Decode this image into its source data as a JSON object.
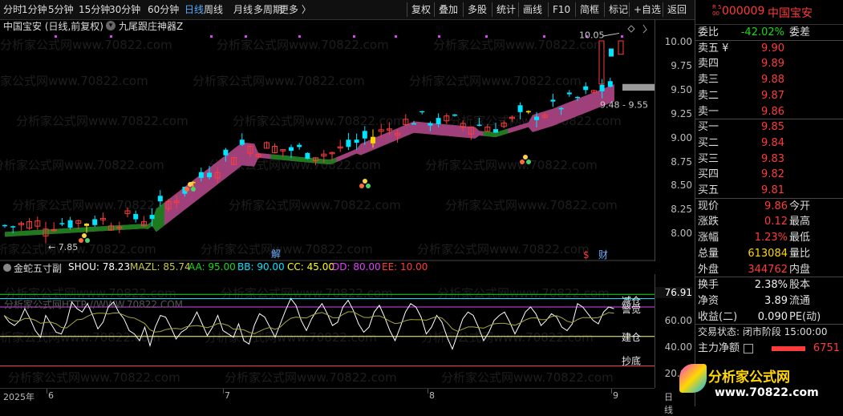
{
  "toolbar": {
    "periods": [
      "分时",
      "1分钟",
      "5分钟",
      "15分钟",
      "30分钟",
      "60分钟",
      "日线",
      "周线",
      "月线",
      "多周期",
      "更多 〉"
    ],
    "active_period": "日线",
    "tools": [
      "复权",
      "叠加",
      "多股",
      "统计",
      "画线",
      "F10",
      "简框",
      "标记",
      "+自选",
      "返回"
    ]
  },
  "chart": {
    "stock_title": "中国宝安 (日线,前复权)",
    "indicator_title": "九尾跟庄神器Z",
    "price_high_label": "10.05",
    "price_low_label": "7.85",
    "range_label": "9.48 - 9.55",
    "marker_jie": "解",
    "marker_dollar": "$",
    "marker_cai": "财",
    "y_labels": [
      "10.00",
      "9.75",
      "9.50",
      "9.25",
      "9.00",
      "8.75",
      "8.50",
      "8.25",
      "8.00"
    ],
    "last_price_tag": ""
  },
  "indicator": {
    "name": "金蛇五寸副",
    "params": [
      {
        "label": "SHOU: 78.23",
        "color": "#ffffff"
      },
      {
        "label": "MAZL: 85.74",
        "color": "#c8c84a"
      },
      {
        "label": "AA: 95.00",
        "color": "#19d819"
      },
      {
        "label": "BB: 90.00",
        "color": "#00e5ff"
      },
      {
        "label": "CC: 45.00",
        "color": "#ffff00"
      },
      {
        "label": "DD: 80.00",
        "color": "#e040fb"
      },
      {
        "label": "EE: 10.00",
        "color": "#ff3b3b"
      }
    ],
    "level_labels": [
      "减仓",
      "警觉",
      "建仓",
      "抄底"
    ],
    "y_labels": [
      "60.00",
      "40.00",
      "20.00"
    ],
    "current_value": "76.91",
    "watermark": "分析家公式网HTTP://WWW.70822.COM"
  },
  "xaxis": {
    "labels": [
      "2025年",
      "6",
      "7",
      "8",
      "9"
    ],
    "right_label": "日线"
  },
  "panel": {
    "badge": "R 500",
    "code": "000009",
    "name": "中国宝安",
    "weibi": {
      "label": "委比",
      "value": "-42.02%",
      "right": "委差"
    },
    "asks": [
      {
        "label": "卖五 ¥",
        "price": "9.90"
      },
      {
        "label": "卖四",
        "price": "9.89"
      },
      {
        "label": "卖三",
        "price": "9.88"
      },
      {
        "label": "卖二",
        "price": "9.87"
      },
      {
        "label": "卖一",
        "price": "9.86"
      }
    ],
    "bids": [
      {
        "label": "买一",
        "price": "9.85"
      },
      {
        "label": "买二",
        "price": "9.84"
      },
      {
        "label": "买三",
        "price": "9.83"
      },
      {
        "label": "买四",
        "price": "9.82"
      },
      {
        "label": "买五",
        "price": "9.81"
      }
    ],
    "stats": [
      {
        "label": "现价",
        "value": "9.86",
        "right": "今开",
        "cls": "red"
      },
      {
        "label": "涨跌",
        "value": "0.12",
        "right": "最高",
        "cls": "red"
      },
      {
        "label": "涨幅",
        "value": "1.23%",
        "right": "最低",
        "cls": "red"
      },
      {
        "label": "总量",
        "value": "613084",
        "right": "量比",
        "cls": "yellow"
      },
      {
        "label": "外盘",
        "value": "344762",
        "right": "内盘",
        "cls": "red"
      }
    ],
    "stats2": [
      {
        "label": "换手",
        "value": "2.38%",
        "right": "股本"
      },
      {
        "label": "净资",
        "value": "3.89",
        "right": "流通"
      },
      {
        "label": "收益(二)",
        "value": "0.090",
        "right": "PE(动)"
      }
    ],
    "trade_status": "交易状态: 闭市阶段 15:00:00",
    "main_net_label": "主力净额",
    "main_net_value": "6751"
  },
  "watermark_text": "分析家公式网www.70822.com",
  "logo": {
    "title": "分析家公式网",
    "url": "www.70822.com"
  },
  "colors": {
    "up": "#ff3b3b",
    "down": "#00e5ff",
    "accent": "#5aa9ff",
    "band": "#a0407a",
    "band_low": "#1f7a1f"
  }
}
